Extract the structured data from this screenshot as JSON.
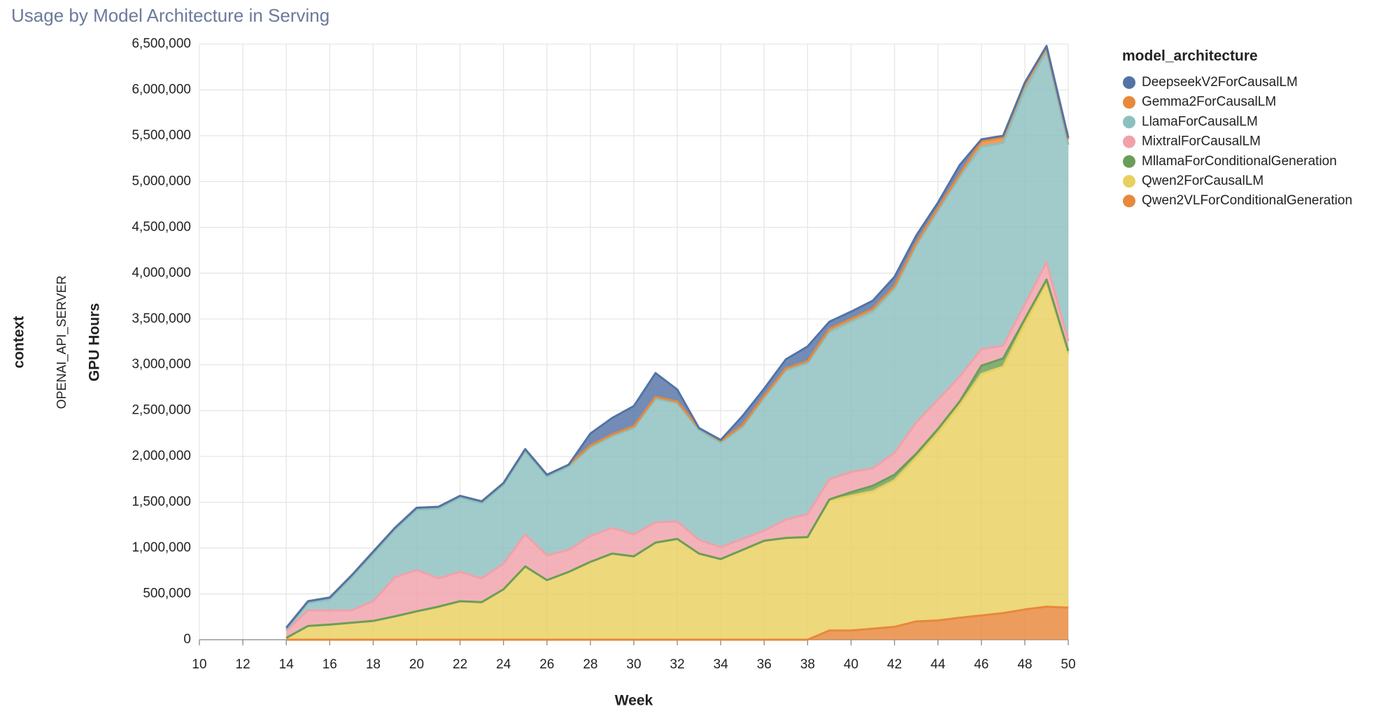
{
  "chart_data": {
    "type": "stacked_area",
    "title": "Usage by Model Architecture in Serving",
    "x_label": "Week",
    "y_label": "GPU Hours",
    "facet_row_title": "context",
    "facet_row_value": "OPENAI_API_SERVER",
    "legend_title": "model_architecture",
    "legend_position": "right",
    "grid": true,
    "x": [
      14,
      15,
      16,
      17,
      18,
      19,
      20,
      21,
      22,
      23,
      24,
      25,
      26,
      27,
      28,
      29,
      30,
      31,
      32,
      33,
      34,
      35,
      36,
      37,
      38,
      39,
      40,
      41,
      42,
      43,
      44,
      45,
      46,
      47,
      48,
      49,
      50
    ],
    "xlim": [
      10,
      50
    ],
    "xticks": [
      10,
      12,
      14,
      16,
      18,
      20,
      22,
      24,
      26,
      28,
      30,
      32,
      34,
      36,
      38,
      40,
      42,
      44,
      46,
      48,
      50
    ],
    "ylim": [
      0,
      6500000
    ],
    "yticks": [
      0,
      {
        "value": 500000,
        "label": "500,000"
      },
      {
        "value": 1000000,
        "label": "1,000,000"
      },
      {
        "value": 1500000,
        "label": "1,500,000"
      },
      {
        "value": 2000000,
        "label": "2,000,000"
      },
      {
        "value": 2500000,
        "label": "2,500,000"
      },
      {
        "value": 3000000,
        "label": "3,000,000"
      },
      {
        "value": 3500000,
        "label": "3,500,000"
      },
      {
        "value": 4000000,
        "label": "4,000,000"
      },
      {
        "value": 4500000,
        "label": "4,500,000"
      },
      {
        "value": 5000000,
        "label": "5,000,000"
      },
      {
        "value": 5500000,
        "label": "5,500,000"
      },
      {
        "value": 6000000,
        "label": "6,000,000"
      },
      {
        "value": 6500000,
        "label": "6,500,000"
      }
    ],
    "series": [
      {
        "name": "DeepseekV2ForCausalLM",
        "color": "#5373a6",
        "values": [
          0,
          0,
          0,
          0,
          0,
          0,
          0,
          0,
          0,
          0,
          0,
          0,
          0,
          0,
          130000,
          180000,
          220000,
          260000,
          130000,
          0,
          10000,
          100000,
          80000,
          100000,
          160000,
          80000,
          80000,
          90000,
          100000,
          80000,
          60000,
          100000,
          20000,
          20000,
          20000,
          20000,
          20000
        ]
      },
      {
        "name": "Gemma2ForCausalLM",
        "color": "#e8883a",
        "values": [
          20000,
          20000,
          20000,
          20000,
          20000,
          20000,
          20000,
          20000,
          20000,
          20000,
          20000,
          20000,
          20000,
          20000,
          20000,
          20000,
          20000,
          20000,
          20000,
          20000,
          20000,
          20000,
          20000,
          20000,
          20000,
          30000,
          30000,
          30000,
          30000,
          30000,
          30000,
          30000,
          60000,
          60000,
          60000,
          40000,
          60000
        ]
      },
      {
        "name": "LlamaForCausalLM",
        "color": "#8cc0be",
        "values": [
          10000,
          80000,
          120000,
          360000,
          520000,
          520000,
          660000,
          760000,
          810000,
          820000,
          860000,
          910000,
          860000,
          910000,
          970000,
          1000000,
          1160000,
          1350000,
          1290000,
          1200000,
          1140000,
          1220000,
          1450000,
          1630000,
          1650000,
          1610000,
          1640000,
          1710000,
          1790000,
          1930000,
          2060000,
          2180000,
          2210000,
          2210000,
          2340000,
          2300000,
          2140000
        ]
      },
      {
        "name": "MixtralForCausalLM",
        "color": "#f0a1aa",
        "values": [
          80000,
          170000,
          155000,
          135000,
          215000,
          425000,
          450000,
          310000,
          320000,
          260000,
          280000,
          350000,
          270000,
          240000,
          280000,
          280000,
          240000,
          220000,
          190000,
          150000,
          130000,
          120000,
          110000,
          200000,
          250000,
          220000,
          220000,
          190000,
          240000,
          340000,
          320000,
          270000,
          180000,
          140000,
          160000,
          190000,
          110000
        ]
      },
      {
        "name": "MllamaForConditionalGeneration",
        "color": "#6a9e58",
        "values": [
          0,
          0,
          0,
          0,
          0,
          0,
          0,
          0,
          0,
          0,
          0,
          0,
          0,
          0,
          0,
          0,
          0,
          0,
          0,
          0,
          0,
          0,
          0,
          0,
          0,
          10000,
          40000,
          60000,
          60000,
          40000,
          40000,
          40000,
          90000,
          90000,
          50000,
          30000,
          30000
        ]
      },
      {
        "name": "Qwen2ForCausalLM",
        "color": "#e9cf5e",
        "values": [
          20000,
          150000,
          165000,
          185000,
          205000,
          255000,
          310000,
          360000,
          420000,
          410000,
          550000,
          800000,
          650000,
          740000,
          850000,
          940000,
          910000,
          1060000,
          1100000,
          940000,
          880000,
          980000,
          1080000,
          1110000,
          1120000,
          1420000,
          1470000,
          1500000,
          1600000,
          1790000,
          2050000,
          2320000,
          2635000,
          2690000,
          3120000,
          3540000,
          2770000
        ]
      },
      {
        "name": "Qwen2VLForConditionalGeneration",
        "color": "#e8883a",
        "values": [
          0,
          0,
          0,
          0,
          0,
          0,
          0,
          0,
          0,
          0,
          0,
          0,
          0,
          0,
          0,
          0,
          0,
          0,
          0,
          0,
          0,
          0,
          0,
          0,
          0,
          100000,
          100000,
          120000,
          140000,
          200000,
          210000,
          240000,
          265000,
          290000,
          330000,
          360000,
          350000
        ]
      }
    ]
  }
}
